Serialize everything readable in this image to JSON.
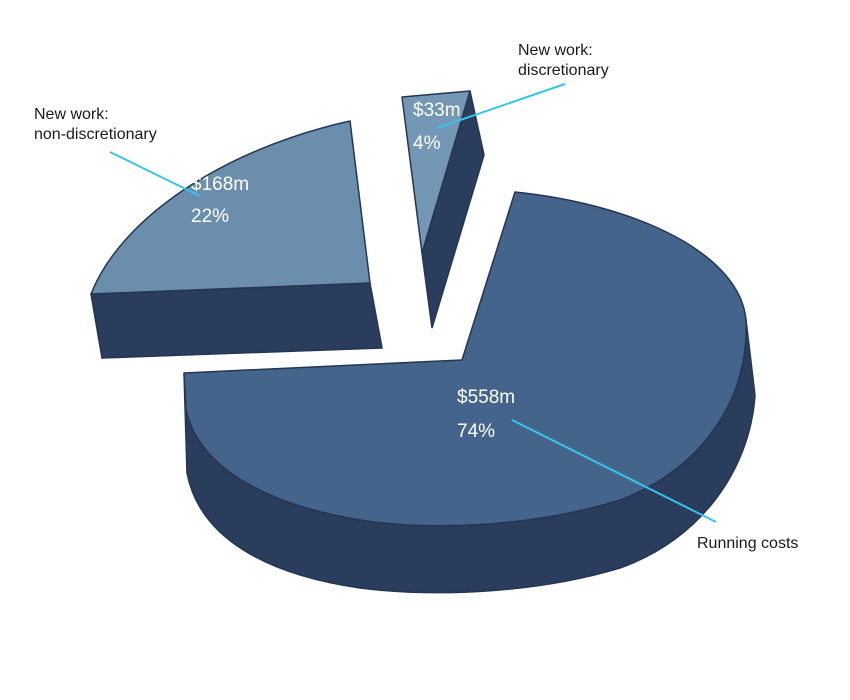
{
  "chart_data": {
    "type": "pie",
    "title": "",
    "unit": "$m",
    "slices": [
      {
        "category_line1": "",
        "category_line2": "Running costs",
        "value_label": "$558m",
        "percent_label": "74%",
        "value": 558,
        "percent": 74,
        "color": "#44648c"
      },
      {
        "category_line1": "New work:",
        "category_line2": "non-discretionary",
        "value_label": "$168m",
        "percent_label": "22%",
        "value": 168,
        "percent": 22,
        "color": "#6b8eac"
      },
      {
        "category_line1": "New work:",
        "category_line2": "discretionary",
        "value_label": "$33m",
        "percent_label": "4%",
        "value": 33,
        "percent": 4,
        "color": "#7497b5"
      }
    ],
    "exploded": true,
    "three_d": true,
    "legend": "none",
    "leader_line_color": "#33c5ea",
    "side_color": "#2b3d5c"
  }
}
